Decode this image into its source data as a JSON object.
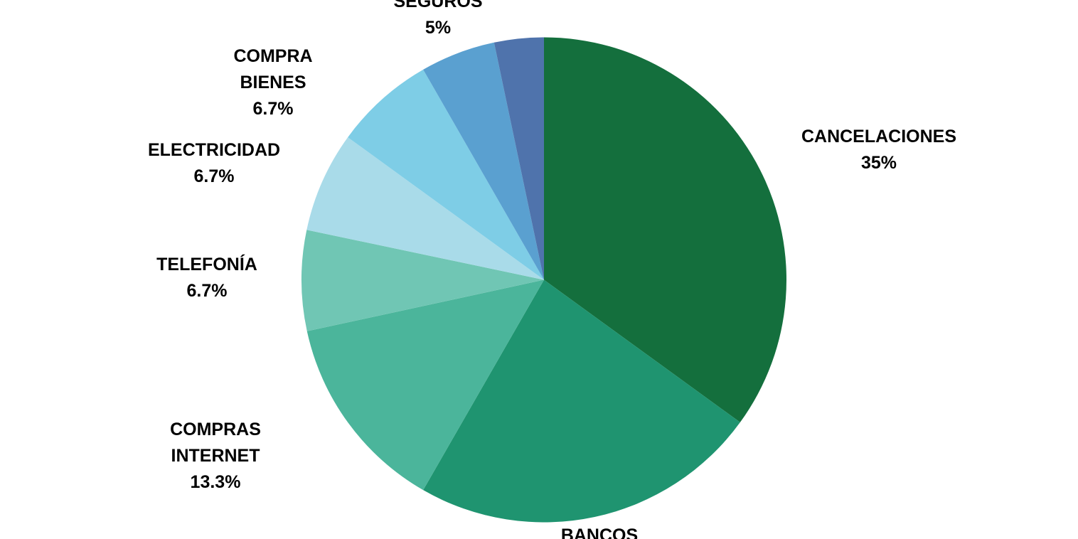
{
  "chart_data": {
    "type": "pie",
    "title": "",
    "legend": "none",
    "background_color": "#FFFFFF",
    "label_color": "#000000",
    "start_angle_deg": 0,
    "direction": "clockwise",
    "label_style": "outside, bold, black, category name over percentage",
    "slices": [
      {
        "label": "CANCELACIONES",
        "label_lines": [
          "CANCELACIONES"
        ],
        "pct_label": "35%",
        "value": 35,
        "color": "#146F3D",
        "label_visible": true,
        "pct_visible": true
      },
      {
        "label": "BANCOS",
        "label_lines": [
          "BANCOS"
        ],
        "pct_label": "",
        "value": 23.3,
        "color": "#1F9470",
        "label_visible": true,
        "pct_visible": false
      },
      {
        "label": "COMPRAS INTERNET",
        "label_lines": [
          "COMPRAS",
          "INTERNET"
        ],
        "pct_label": "13.3%",
        "value": 13.3,
        "color": "#4BB59B",
        "label_visible": true,
        "pct_visible": true
      },
      {
        "label": "TELEFONÍA",
        "label_lines": [
          "TELEFONÍA"
        ],
        "pct_label": "6.7%",
        "value": 6.7,
        "color": "#70C6B4",
        "label_visible": true,
        "pct_visible": true
      },
      {
        "label": "ELECTRICIDAD",
        "label_lines": [
          "ELECTRICIDAD"
        ],
        "pct_label": "6.7%",
        "value": 6.7,
        "color": "#A9DBE9",
        "label_visible": true,
        "pct_visible": true
      },
      {
        "label": "COMPRA BIENES",
        "label_lines": [
          "COMPRA",
          "BIENES"
        ],
        "pct_label": "6.7%",
        "value": 6.7,
        "color": "#7ECDE6",
        "label_visible": true,
        "pct_visible": true
      },
      {
        "label": "SEGUROS",
        "label_lines": [
          "SEGUROS"
        ],
        "pct_label": "5%",
        "value": 5,
        "color": "#5AA0D0",
        "label_visible": true,
        "pct_visible": true
      },
      {
        "label": "",
        "label_lines": [],
        "pct_label": "",
        "value": 3.3,
        "color": "#4F73AC",
        "label_visible": false,
        "pct_visible": false
      }
    ]
  }
}
